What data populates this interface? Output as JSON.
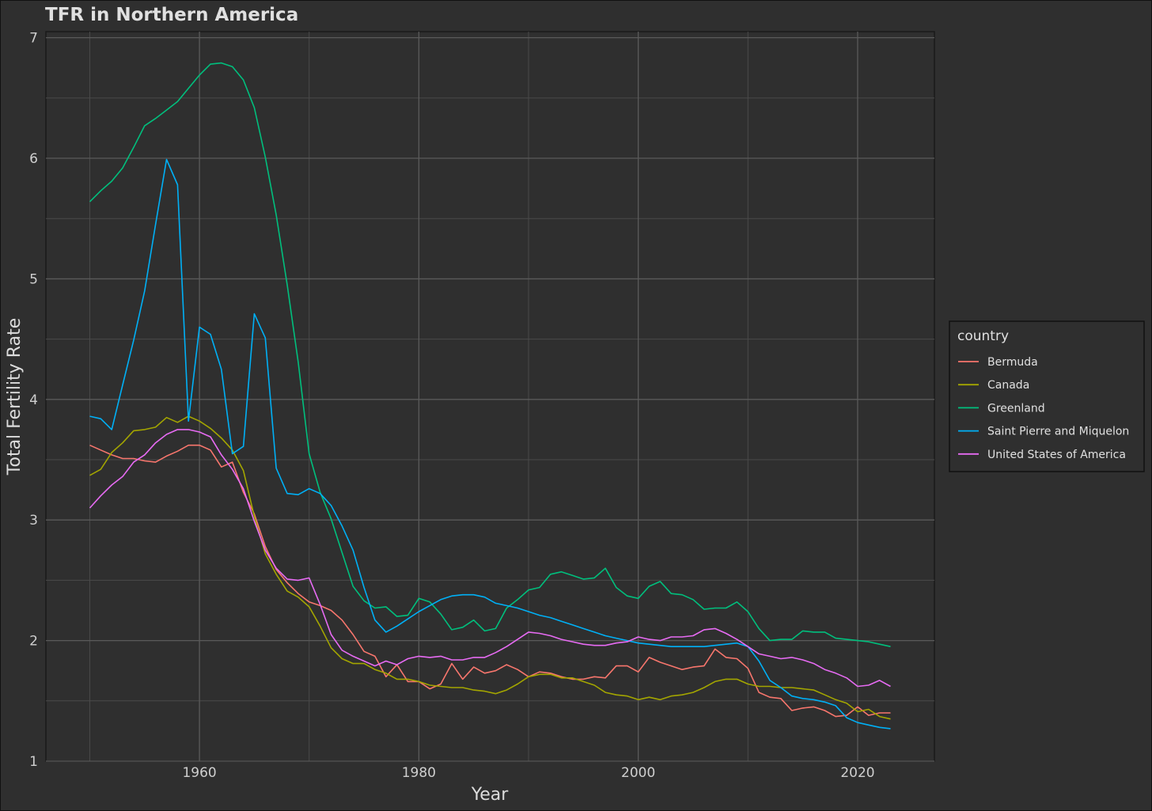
{
  "chart_data": {
    "type": "line",
    "title": "TFR in Northern America",
    "xlabel": "Year",
    "ylabel": "Total Fertility Rate",
    "xlim": [
      1946,
      2027
    ],
    "ylim": [
      1,
      7.05
    ],
    "x_ticks": [
      1960,
      1980,
      2000,
      2020
    ],
    "y_ticks": [
      1,
      2,
      3,
      4,
      5,
      6,
      7
    ],
    "grid": true,
    "legend_title": "country",
    "legend_position": "right",
    "x": [
      1950,
      1951,
      1952,
      1953,
      1954,
      1955,
      1956,
      1957,
      1958,
      1959,
      1960,
      1961,
      1962,
      1963,
      1964,
      1965,
      1966,
      1967,
      1968,
      1969,
      1970,
      1971,
      1972,
      1973,
      1974,
      1975,
      1976,
      1977,
      1978,
      1979,
      1980,
      1981,
      1982,
      1983,
      1984,
      1985,
      1986,
      1987,
      1988,
      1989,
      1990,
      1991,
      1992,
      1993,
      1994,
      1995,
      1996,
      1997,
      1998,
      1999,
      2000,
      2001,
      2002,
      2003,
      2004,
      2005,
      2006,
      2007,
      2008,
      2009,
      2010,
      2011,
      2012,
      2013,
      2014,
      2015,
      2016,
      2017,
      2018,
      2019,
      2020,
      2021,
      2022,
      2023
    ],
    "series": [
      {
        "name": "Bermuda",
        "color": "#f8766d",
        "values": [
          3.62,
          3.58,
          3.54,
          3.51,
          3.51,
          3.49,
          3.48,
          3.53,
          3.57,
          3.62,
          3.62,
          3.58,
          3.44,
          3.48,
          3.23,
          3.05,
          2.78,
          2.59,
          2.48,
          2.39,
          2.32,
          2.29,
          2.25,
          2.17,
          2.05,
          1.91,
          1.87,
          1.7,
          1.8,
          1.66,
          1.66,
          1.6,
          1.64,
          1.81,
          1.68,
          1.78,
          1.73,
          1.75,
          1.8,
          1.76,
          1.7,
          1.74,
          1.73,
          1.7,
          1.68,
          1.68,
          1.7,
          1.69,
          1.79,
          1.79,
          1.74,
          1.86,
          1.82,
          1.79,
          1.76,
          1.78,
          1.79,
          1.93,
          1.86,
          1.85,
          1.77,
          1.57,
          1.53,
          1.52,
          1.42,
          1.44,
          1.45,
          1.42,
          1.37,
          1.38,
          1.45,
          1.38,
          1.4,
          1.4
        ]
      },
      {
        "name": "Canada",
        "color": "#a3a500",
        "values": [
          3.37,
          3.42,
          3.56,
          3.64,
          3.74,
          3.75,
          3.77,
          3.85,
          3.81,
          3.86,
          3.82,
          3.76,
          3.68,
          3.58,
          3.41,
          3.03,
          2.72,
          2.55,
          2.41,
          2.36,
          2.28,
          2.12,
          1.94,
          1.85,
          1.81,
          1.81,
          1.76,
          1.73,
          1.68,
          1.68,
          1.66,
          1.63,
          1.62,
          1.61,
          1.61,
          1.59,
          1.58,
          1.56,
          1.59,
          1.64,
          1.7,
          1.72,
          1.72,
          1.69,
          1.69,
          1.66,
          1.63,
          1.57,
          1.55,
          1.54,
          1.51,
          1.53,
          1.51,
          1.54,
          1.55,
          1.57,
          1.61,
          1.66,
          1.68,
          1.68,
          1.64,
          1.62,
          1.62,
          1.61,
          1.61,
          1.6,
          1.59,
          1.55,
          1.51,
          1.48,
          1.41,
          1.43,
          1.37,
          1.35
        ]
      },
      {
        "name": "Greenland",
        "color": "#00bf7d",
        "values": [
          5.64,
          5.73,
          5.81,
          5.92,
          6.09,
          6.27,
          6.33,
          6.4,
          6.47,
          6.58,
          6.69,
          6.78,
          6.79,
          6.76,
          6.65,
          6.42,
          6.01,
          5.53,
          4.95,
          4.31,
          3.55,
          3.23,
          3.01,
          2.73,
          2.45,
          2.33,
          2.27,
          2.28,
          2.2,
          2.21,
          2.35,
          2.32,
          2.22,
          2.09,
          2.11,
          2.17,
          2.08,
          2.1,
          2.27,
          2.34,
          2.42,
          2.44,
          2.55,
          2.57,
          2.54,
          2.51,
          2.52,
          2.6,
          2.44,
          2.37,
          2.35,
          2.45,
          2.49,
          2.39,
          2.38,
          2.34,
          2.26,
          2.27,
          2.27,
          2.32,
          2.24,
          2.1,
          2.0,
          2.01,
          2.01,
          2.08,
          2.07,
          2.07,
          2.02,
          2.01,
          2.0,
          1.99,
          1.97,
          1.95
        ]
      },
      {
        "name": "Saint Pierre and Miquelon",
        "color": "#00b0f6",
        "values": [
          3.86,
          3.84,
          3.75,
          4.12,
          4.49,
          4.9,
          5.45,
          5.99,
          5.78,
          3.82,
          4.6,
          4.54,
          4.25,
          3.55,
          3.61,
          4.71,
          4.51,
          3.43,
          3.22,
          3.21,
          3.26,
          3.22,
          3.12,
          2.95,
          2.75,
          2.44,
          2.17,
          2.07,
          2.12,
          2.18,
          2.24,
          2.29,
          2.34,
          2.37,
          2.38,
          2.38,
          2.36,
          2.31,
          2.29,
          2.27,
          2.24,
          2.21,
          2.19,
          2.16,
          2.13,
          2.1,
          2.07,
          2.04,
          2.02,
          2.0,
          1.98,
          1.97,
          1.96,
          1.95,
          1.95,
          1.95,
          1.95,
          1.96,
          1.97,
          1.98,
          1.95,
          1.83,
          1.67,
          1.61,
          1.54,
          1.52,
          1.51,
          1.49,
          1.46,
          1.36,
          1.32,
          1.3,
          1.28,
          1.27
        ]
      },
      {
        "name": "United States of America",
        "color": "#e76bf3",
        "values": [
          3.1,
          3.2,
          3.29,
          3.36,
          3.48,
          3.54,
          3.64,
          3.71,
          3.75,
          3.75,
          3.73,
          3.69,
          3.54,
          3.42,
          3.26,
          2.99,
          2.75,
          2.6,
          2.51,
          2.5,
          2.52,
          2.3,
          2.05,
          1.92,
          1.87,
          1.83,
          1.79,
          1.83,
          1.8,
          1.85,
          1.87,
          1.86,
          1.87,
          1.84,
          1.84,
          1.86,
          1.86,
          1.9,
          1.95,
          2.01,
          2.07,
          2.06,
          2.04,
          2.01,
          1.99,
          1.97,
          1.96,
          1.96,
          1.98,
          1.99,
          2.03,
          2.01,
          2.0,
          2.03,
          2.03,
          2.04,
          2.09,
          2.1,
          2.06,
          2.01,
          1.95,
          1.89,
          1.87,
          1.85,
          1.86,
          1.84,
          1.81,
          1.76,
          1.73,
          1.69,
          1.62,
          1.63,
          1.67,
          1.62
        ]
      }
    ]
  }
}
